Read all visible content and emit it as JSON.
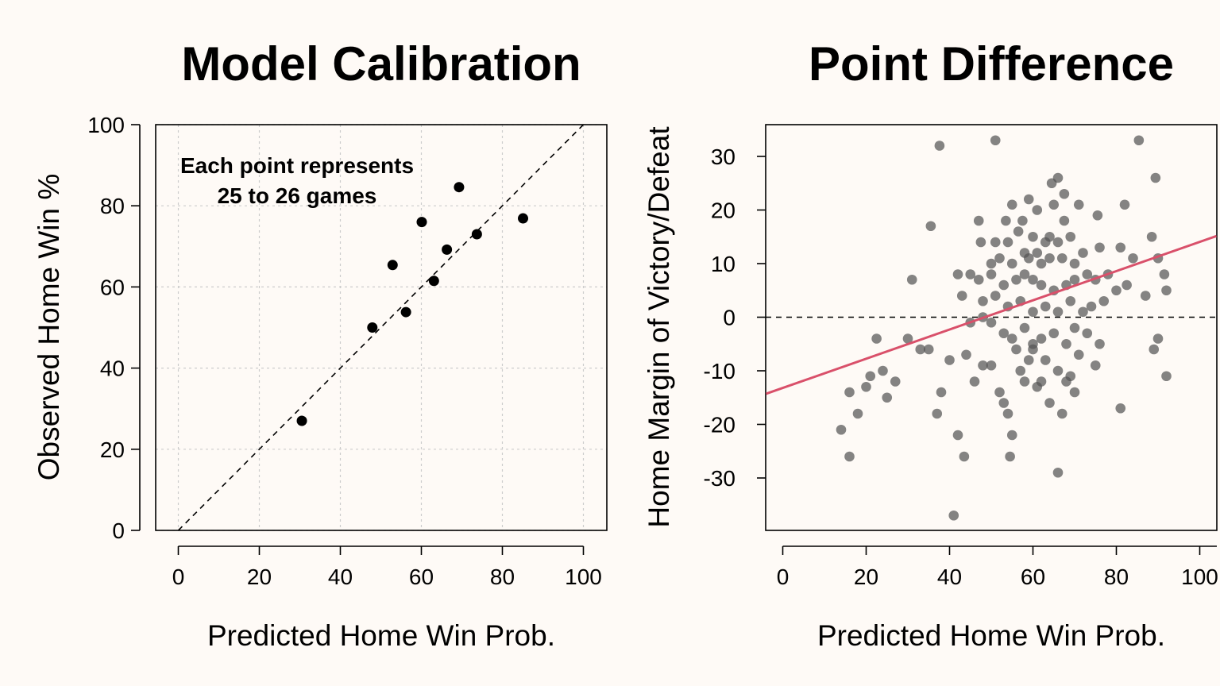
{
  "colors": {
    "background": "#fefaf6",
    "grid": "#cccccc",
    "calibration_point": "#000000",
    "scatter_point": "#555555",
    "fit_line": "#d9506a"
  },
  "chart_data": [
    {
      "type": "scatter",
      "title": "Model Calibration",
      "xlabel": "Predicted Home Win Prob.",
      "ylabel": "Observed Home Win %",
      "xlim": [
        -6,
        105
      ],
      "ylim": [
        0,
        100
      ],
      "xticks": [
        0,
        20,
        40,
        60,
        80,
        100
      ],
      "yticks": [
        0,
        20,
        40,
        60,
        80,
        100
      ],
      "grid": true,
      "reference_line": {
        "style": "dashed",
        "points": [
          [
            0,
            0
          ],
          [
            100,
            100
          ]
        ]
      },
      "annotation": [
        "Each point represents",
        "25 to 26 games"
      ],
      "points": [
        {
          "x": 30.5,
          "y": 27
        },
        {
          "x": 47.9,
          "y": 50
        },
        {
          "x": 52.9,
          "y": 65.4
        },
        {
          "x": 56.2,
          "y": 53.8
        },
        {
          "x": 60.1,
          "y": 76
        },
        {
          "x": 63.1,
          "y": 61.5
        },
        {
          "x": 66.3,
          "y": 69.2
        },
        {
          "x": 69.3,
          "y": 84.6
        },
        {
          "x": 73.7,
          "y": 73
        },
        {
          "x": 85.1,
          "y": 76.9
        }
      ]
    },
    {
      "type": "scatter",
      "title": "Point Difference",
      "xlabel": "Predicted Home Win Prob.",
      "ylabel": "Home Margin of Victory/Defeat",
      "xlim": [
        -4,
        104
      ],
      "ylim": [
        -39,
        36
      ],
      "xticks": [
        0,
        20,
        40,
        60,
        80,
        100
      ],
      "yticks": [
        30,
        20,
        10,
        0,
        -10,
        -20,
        -30
      ],
      "grid": false,
      "zero_line": {
        "style": "dashed",
        "y": 0
      },
      "fit_line": {
        "slope": 0.2725,
        "intercept": -13.2
      },
      "points": [
        [
          37.6,
          32
        ],
        [
          51,
          33
        ],
        [
          85.4,
          33
        ],
        [
          89.4,
          26
        ],
        [
          66,
          26
        ],
        [
          64.5,
          25
        ],
        [
          67.5,
          23
        ],
        [
          59,
          22
        ],
        [
          55,
          21
        ],
        [
          65,
          21
        ],
        [
          35.5,
          17
        ],
        [
          47,
          18
        ],
        [
          53.5,
          18
        ],
        [
          57.5,
          18
        ],
        [
          67.5,
          18
        ],
        [
          75.5,
          19
        ],
        [
          82,
          21
        ],
        [
          61,
          20
        ],
        [
          71,
          21
        ],
        [
          56.5,
          16
        ],
        [
          60,
          15
        ],
        [
          64,
          15
        ],
        [
          51,
          14
        ],
        [
          47.5,
          14
        ],
        [
          54,
          14
        ],
        [
          58,
          12
        ],
        [
          61,
          12
        ],
        [
          63,
          14
        ],
        [
          66,
          14
        ],
        [
          69,
          15
        ],
        [
          50,
          10
        ],
        [
          52,
          11
        ],
        [
          55,
          10
        ],
        [
          59,
          11
        ],
        [
          62,
          10
        ],
        [
          64,
          11
        ],
        [
          67,
          11
        ],
        [
          70,
          10
        ],
        [
          72,
          12
        ],
        [
          76,
          13
        ],
        [
          81,
          13
        ],
        [
          84,
          11
        ],
        [
          88.5,
          15
        ],
        [
          90,
          11
        ],
        [
          31,
          7
        ],
        [
          42,
          8
        ],
        [
          45,
          8
        ],
        [
          47,
          7
        ],
        [
          50,
          8
        ],
        [
          53,
          6
        ],
        [
          56,
          7
        ],
        [
          58,
          8
        ],
        [
          60,
          7
        ],
        [
          62,
          6
        ],
        [
          65,
          5
        ],
        [
          68,
          6
        ],
        [
          70,
          7
        ],
        [
          73,
          8
        ],
        [
          75,
          7
        ],
        [
          78,
          8
        ],
        [
          82.5,
          6
        ],
        [
          87,
          4
        ],
        [
          91.5,
          8
        ],
        [
          92,
          5
        ],
        [
          43,
          4
        ],
        [
          48,
          3
        ],
        [
          51,
          4
        ],
        [
          54,
          2
        ],
        [
          57,
          3
        ],
        [
          60,
          1
        ],
        [
          63,
          2
        ],
        [
          66,
          1
        ],
        [
          69,
          3
        ],
        [
          72,
          1
        ],
        [
          74,
          2
        ],
        [
          77,
          3
        ],
        [
          80,
          5
        ],
        [
          45,
          -1
        ],
        [
          48,
          0
        ],
        [
          50,
          -1
        ],
        [
          53,
          -3
        ],
        [
          55,
          -4
        ],
        [
          58,
          -2
        ],
        [
          60,
          -5
        ],
        [
          62,
          -4
        ],
        [
          65,
          -3
        ],
        [
          68,
          -5
        ],
        [
          70,
          -2
        ],
        [
          73,
          -3
        ],
        [
          76,
          -5
        ],
        [
          90,
          -4
        ],
        [
          89,
          -6
        ],
        [
          92,
          -11
        ],
        [
          81,
          -17
        ],
        [
          14,
          -21
        ],
        [
          16,
          -14
        ],
        [
          18,
          -18
        ],
        [
          20,
          -13
        ],
        [
          21,
          -11
        ],
        [
          22.5,
          -4
        ],
        [
          24,
          -10
        ],
        [
          25,
          -15
        ],
        [
          27,
          -12
        ],
        [
          30,
          -4
        ],
        [
          33,
          -6
        ],
        [
          16,
          -26
        ],
        [
          37,
          -18
        ],
        [
          38,
          -14
        ],
        [
          40,
          -8
        ],
        [
          41,
          -37
        ],
        [
          42,
          -22
        ],
        [
          43.5,
          -26
        ],
        [
          44,
          -7
        ],
        [
          46,
          -12
        ],
        [
          48,
          -9
        ],
        [
          50,
          -9
        ],
        [
          52,
          -14
        ],
        [
          53,
          -16
        ],
        [
          54,
          -18
        ],
        [
          54.5,
          -26
        ],
        [
          55,
          -22
        ],
        [
          57,
          -10
        ],
        [
          59,
          -8
        ],
        [
          61,
          -13
        ],
        [
          62,
          -12
        ],
        [
          64,
          -16
        ],
        [
          66,
          -29
        ],
        [
          67,
          -18
        ],
        [
          69,
          -11
        ],
        [
          71,
          -7
        ],
        [
          75,
          -9
        ],
        [
          58,
          -12
        ],
        [
          63,
          -8
        ],
        [
          66,
          -10
        ],
        [
          56,
          -6
        ],
        [
          60,
          -6
        ],
        [
          68,
          -12
        ],
        [
          70,
          -14
        ],
        [
          35,
          -6
        ]
      ]
    }
  ]
}
